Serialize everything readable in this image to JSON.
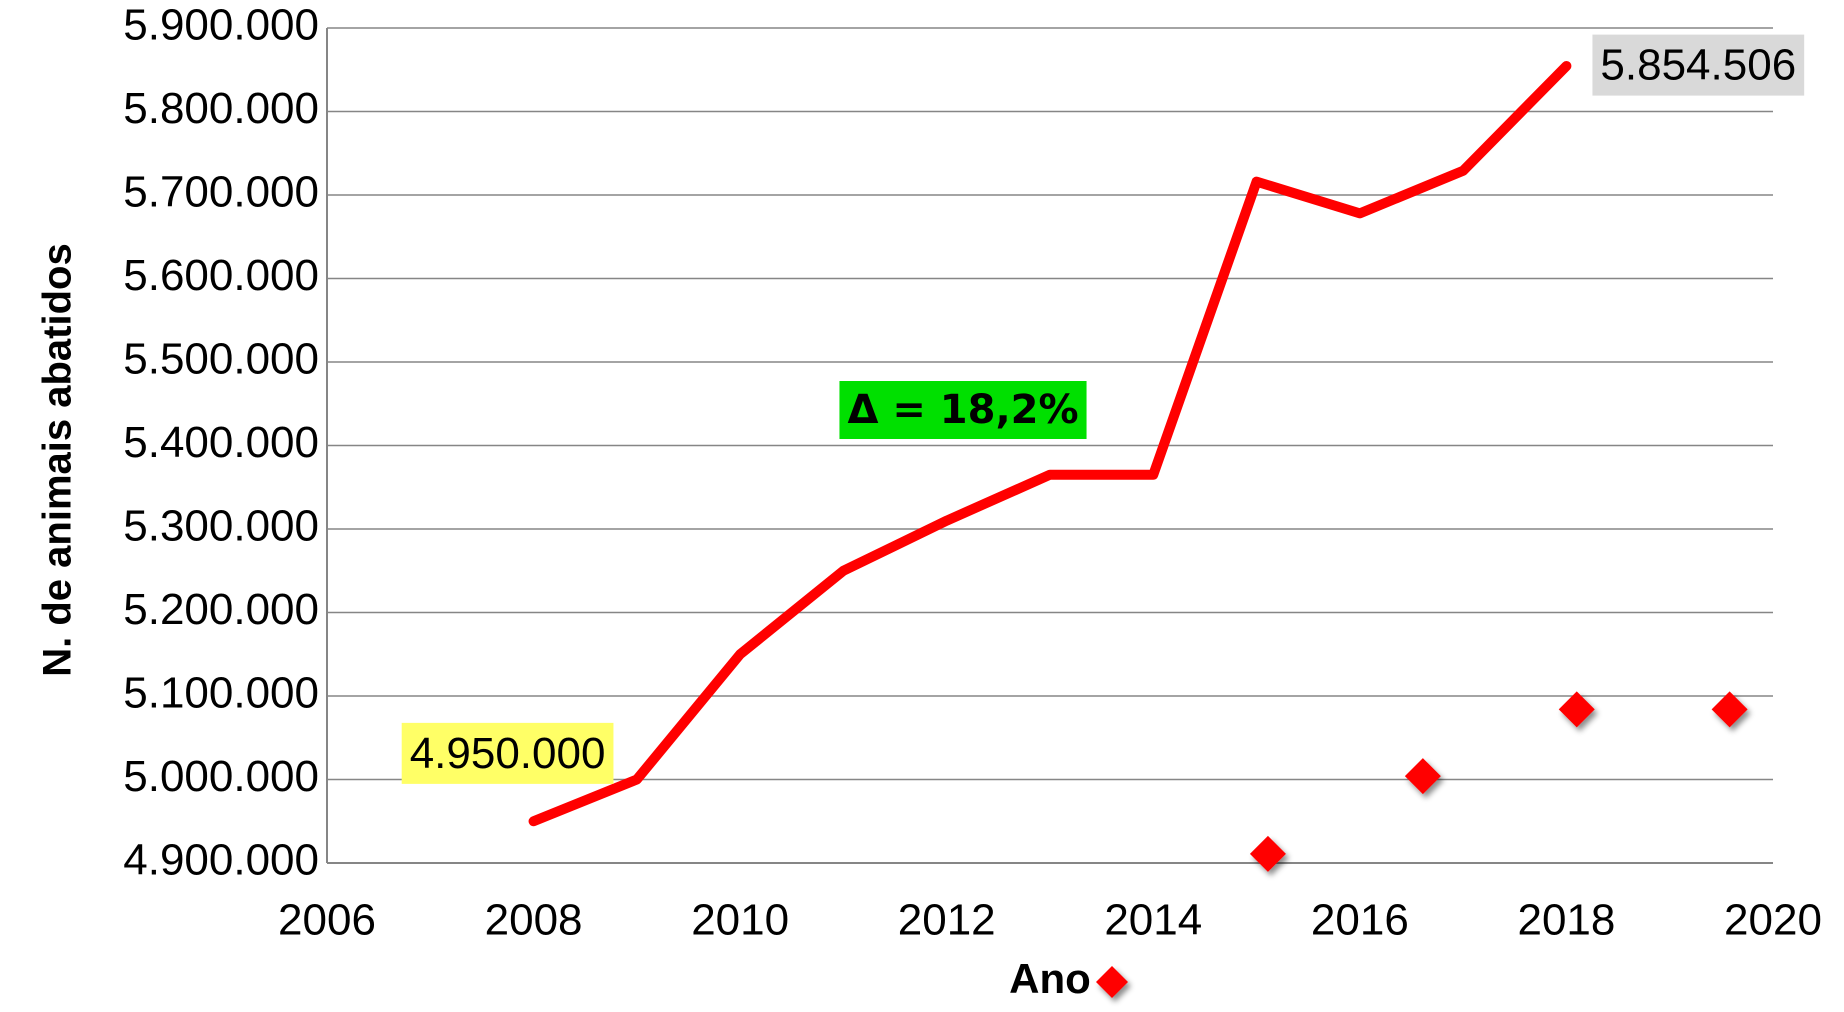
{
  "chart_data": {
    "type": "line",
    "x_label": "Ano",
    "y_label": "N. de animais abatidos",
    "series": [
      {
        "type": "line",
        "color": "#ff0000",
        "x": [
          2008,
          2009,
          2010,
          2011,
          2012,
          2013,
          2014,
          2015,
          2016,
          2017,
          2018
        ],
        "values": [
          4950000,
          5000000,
          5150000,
          5250000,
          5310000,
          5365000,
          5365000,
          5716000,
          5678000,
          5729000,
          5854506
        ],
        "value_labels": [
          "4.950.000",
          null,
          null,
          null,
          null,
          null,
          null,
          null,
          null,
          null,
          "5.854.506"
        ]
      },
      {
        "type": "scatter",
        "color": "#ff0000",
        "x": [
          2015.11,
          2016.61,
          2018.1,
          2019.58
        ],
        "values": [
          4911000,
          5004000,
          5084000,
          5084000
        ]
      }
    ],
    "annotations": [
      {
        "text": "Δ = 18,2%",
        "color": "#00e000"
      }
    ],
    "label_colors": [
      "#ffff66",
      "#d9d9d9"
    ],
    "xlim": [
      2006,
      2020
    ],
    "xticks": [
      2006,
      2008,
      2010,
      2012,
      2014,
      2016,
      2018,
      2020
    ],
    "ylim": [
      4900000,
      5900000
    ],
    "yticks": [
      {
        "value": 4900000,
        "label": "4.900.000"
      },
      {
        "value": 5000000,
        "label": "5.000.000"
      },
      {
        "value": 5100000,
        "label": "5.100.000"
      },
      {
        "value": 5200000,
        "label": "5.200.000"
      },
      {
        "value": 5300000,
        "label": "5.300.000"
      },
      {
        "value": 5400000,
        "label": "5.400.000"
      },
      {
        "value": 5500000,
        "label": "5.500.000"
      },
      {
        "value": 5600000,
        "label": "5.600.000"
      },
      {
        "value": 5700000,
        "label": "5.700.000"
      },
      {
        "value": 5800000,
        "label": "5.800.000"
      },
      {
        "value": 5900000,
        "label": "5.900.000"
      }
    ],
    "grid": true
  }
}
